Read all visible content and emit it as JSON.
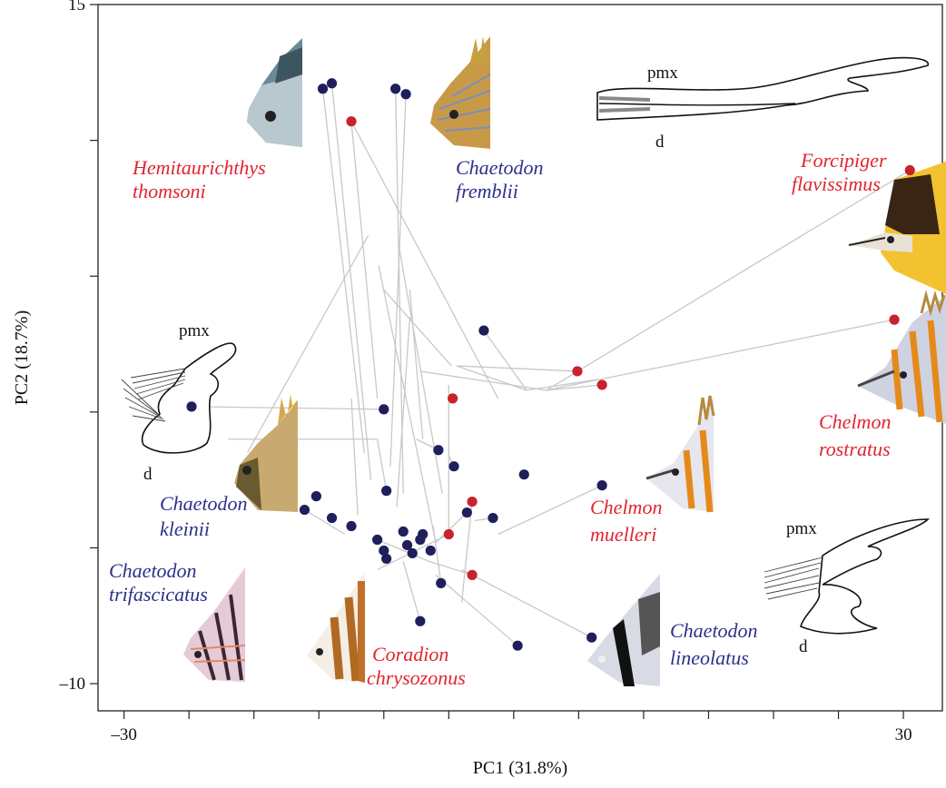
{
  "chart_data": {
    "type": "scatter",
    "xlabel": "PC1 (31.8%)",
    "ylabel": "PC2 (18.7%)",
    "xlim": [
      -32,
      33
    ],
    "ylim": [
      -11,
      15
    ],
    "x_ticks": [
      -30,
      -25,
      -20,
      -15,
      -10,
      -5,
      0,
      5,
      10,
      15,
      20,
      25,
      30
    ],
    "x_tick_labels": [
      {
        "value": -30,
        "label": "–30"
      },
      {
        "value": 30,
        "label": "30"
      }
    ],
    "y_ticks": [
      15,
      10,
      5,
      0,
      -5,
      -10
    ],
    "y_tick_labels": [
      {
        "value": 15,
        "label": "15"
      },
      {
        "value": -10,
        "label": "–10"
      }
    ],
    "colors": {
      "red": "#c8232c",
      "blue": "#1f1f5c",
      "line": "#c8c8c8"
    },
    "points_red": [
      {
        "x": -12.5,
        "y": 10.7
      },
      {
        "x": -4.7,
        "y": 0.5
      },
      {
        "x": -3.2,
        "y": -6.0
      },
      {
        "x": -3.2,
        "y": -3.3
      },
      {
        "x": -5.0,
        "y": -4.5
      },
      {
        "x": 4.9,
        "y": 1.5
      },
      {
        "x": 6.8,
        "y": 1.0
      },
      {
        "x": 29.3,
        "y": 3.4
      },
      {
        "x": 30.5,
        "y": 8.9
      }
    ],
    "points_blue": [
      {
        "x": -14.7,
        "y": 11.9
      },
      {
        "x": -14.0,
        "y": 12.1
      },
      {
        "x": -9.1,
        "y": 11.9
      },
      {
        "x": -8.3,
        "y": 11.7
      },
      {
        "x": -24.8,
        "y": 0.2
      },
      {
        "x": -16.1,
        "y": -3.6
      },
      {
        "x": -15.2,
        "y": -3.1
      },
      {
        "x": -14.0,
        "y": -3.9
      },
      {
        "x": -12.5,
        "y": -4.2
      },
      {
        "x": -10.5,
        "y": -4.7
      },
      {
        "x": -10.0,
        "y": -5.1
      },
      {
        "x": -9.8,
        "y": -5.4
      },
      {
        "x": -9.8,
        "y": -2.9
      },
      {
        "x": -8.5,
        "y": -4.4
      },
      {
        "x": -8.2,
        "y": -4.9
      },
      {
        "x": -7.8,
        "y": -5.2
      },
      {
        "x": -7.2,
        "y": -4.7
      },
      {
        "x": -7.0,
        "y": -4.5
      },
      {
        "x": -6.4,
        "y": -5.1
      },
      {
        "x": -5.8,
        "y": -1.4
      },
      {
        "x": -4.6,
        "y": -2.0
      },
      {
        "x": -3.6,
        "y": -3.7
      },
      {
        "x": -1.6,
        "y": -3.9
      },
      {
        "x": -10.0,
        "y": 0.1
      },
      {
        "x": -5.6,
        "y": -6.3
      },
      {
        "x": -7.2,
        "y": -7.7
      },
      {
        "x": 0.3,
        "y": -8.6
      },
      {
        "x": 6.0,
        "y": -8.3
      },
      {
        "x": 6.8,
        "y": -2.7
      },
      {
        "x": 0.8,
        "y": -2.3
      },
      {
        "x": -2.3,
        "y": 3.0
      }
    ],
    "tree_edges": [
      [
        [
          -12.5,
          10.7
        ],
        [
          -10.5,
          0.5
        ]
      ],
      [
        [
          -14.7,
          11.9
        ],
        [
          -11.5,
          -1.5
        ]
      ],
      [
        [
          -14.0,
          12.1
        ],
        [
          -11.0,
          -2.5
        ]
      ],
      [
        [
          -9.1,
          11.9
        ],
        [
          -8.5,
          -3.0
        ]
      ],
      [
        [
          -8.3,
          11.7
        ],
        [
          -9.5,
          -2.0
        ]
      ],
      [
        [
          -12.5,
          10.7
        ],
        [
          -1.2,
          0.5
        ]
      ],
      [
        [
          -20.5,
          -1.5
        ],
        [
          -11.2,
          6.5
        ]
      ],
      [
        [
          -10.0,
          4.5
        ],
        [
          -4.8,
          1.7
        ]
      ],
      [
        [
          -10.4,
          5.4
        ],
        [
          -6.0,
          -4.8
        ]
      ],
      [
        [
          -8.8,
          6.0
        ],
        [
          -5.5,
          -3.0
        ]
      ],
      [
        [
          -8.0,
          4.5
        ],
        [
          -7.0,
          -1.0
        ]
      ],
      [
        [
          -4.4,
          1.7
        ],
        [
          4.9,
          1.5
        ]
      ],
      [
        [
          -4.4,
          1.7
        ],
        [
          1.0,
          0.8
        ]
      ],
      [
        [
          1.0,
          0.8
        ],
        [
          6.5,
          1.2
        ]
      ],
      [
        [
          1.0,
          0.8
        ],
        [
          -2.3,
          3.0
        ]
      ],
      [
        [
          -7.2,
          1.5
        ],
        [
          2.5,
          0.8
        ]
      ],
      [
        [
          2.5,
          0.8
        ],
        [
          30.5,
          8.9
        ]
      ],
      [
        [
          2.5,
          0.8
        ],
        [
          29.3,
          3.4
        ]
      ],
      [
        [
          2.5,
          0.8
        ],
        [
          6.8,
          1.0
        ]
      ],
      [
        [
          -24.8,
          0.2
        ],
        [
          -10.0,
          0.1
        ]
      ],
      [
        [
          -22.0,
          -1.0
        ],
        [
          -10.5,
          -1.0
        ]
      ],
      [
        [
          -10.5,
          -1.0
        ],
        [
          -9.8,
          -2.9
        ]
      ],
      [
        [
          -7.5,
          -1.0
        ],
        [
          -5.8,
          -1.4
        ]
      ],
      [
        [
          -5.0,
          -1.6
        ],
        [
          -4.6,
          -2.0
        ]
      ],
      [
        [
          -6.0,
          -4.8
        ],
        [
          -3.6,
          -3.7
        ]
      ],
      [
        [
          -3.0,
          -4.0
        ],
        [
          -1.6,
          -3.9
        ]
      ],
      [
        [
          -6.2,
          -4.2
        ],
        [
          -5.6,
          -6.3
        ]
      ],
      [
        [
          -8.5,
          -5.5
        ],
        [
          -7.2,
          -7.7
        ]
      ],
      [
        [
          -6.5,
          -5.5
        ],
        [
          -10.5,
          -4.7
        ]
      ],
      [
        [
          -6.5,
          -5.5
        ],
        [
          -3.2,
          -6.0
        ]
      ],
      [
        [
          -6.0,
          -6.0
        ],
        [
          0.3,
          -8.6
        ]
      ],
      [
        [
          -4.0,
          -5.8
        ],
        [
          6.0,
          -8.3
        ]
      ],
      [
        [
          -1.2,
          -4.5
        ],
        [
          6.8,
          -2.7
        ]
      ],
      [
        [
          -5.0,
          -4.5
        ],
        [
          -5.0,
          1.0
        ]
      ],
      [
        [
          -9.0,
          -3.5
        ],
        [
          -8.0,
          3.5
        ]
      ],
      [
        [
          -12.0,
          -3.8
        ],
        [
          -12.5,
          0.5
        ]
      ],
      [
        [
          -13.0,
          -4.5
        ],
        [
          -16.1,
          -3.6
        ]
      ],
      [
        [
          -10.5,
          -5.8
        ],
        [
          -5.0,
          -4.5
        ]
      ],
      [
        [
          -4.0,
          -7.0
        ],
        [
          -3.2,
          -3.3
        ]
      ]
    ],
    "species_labels": [
      {
        "lines": [
          "Hemitaurichthys",
          "thomsoni"
        ],
        "color": "red"
      },
      {
        "lines": [
          "Chaetodon",
          "fremblii"
        ],
        "color": "blue"
      },
      {
        "lines": [
          "Forcipiger",
          "flavissimus"
        ],
        "color": "red"
      },
      {
        "lines": [
          "Chelmon",
          "rostratus"
        ],
        "color": "red"
      },
      {
        "lines": [
          "Chaetodon",
          "kleinii"
        ],
        "color": "blue"
      },
      {
        "lines": [
          "Chelmon",
          "muelleri"
        ],
        "color": "red"
      },
      {
        "lines": [
          "Chaetodon",
          "trifascicatus"
        ],
        "color": "blue"
      },
      {
        "lines": [
          "Coradion",
          "chrysozonus"
        ],
        "color": "red"
      },
      {
        "lines": [
          "Chaetodon",
          "lineolatus"
        ],
        "color": "blue"
      }
    ],
    "jaw_labels": {
      "premaxilla": "pmx",
      "dentary": "d"
    },
    "grid": false,
    "legend": "none"
  }
}
